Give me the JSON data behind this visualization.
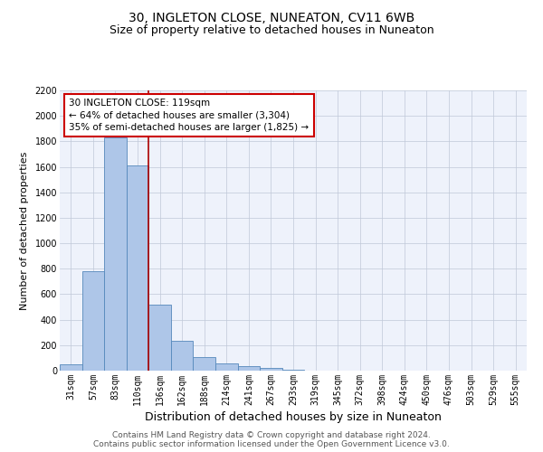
{
  "title1": "30, INGLETON CLOSE, NUNEATON, CV11 6WB",
  "title2": "Size of property relative to detached houses in Nuneaton",
  "xlabel": "Distribution of detached houses by size in Nuneaton",
  "ylabel": "Number of detached properties",
  "categories": [
    "31sqm",
    "57sqm",
    "83sqm",
    "110sqm",
    "136sqm",
    "162sqm",
    "188sqm",
    "214sqm",
    "241sqm",
    "267sqm",
    "293sqm",
    "319sqm",
    "345sqm",
    "372sqm",
    "398sqm",
    "424sqm",
    "450sqm",
    "476sqm",
    "503sqm",
    "529sqm",
    "555sqm"
  ],
  "values": [
    50,
    780,
    1830,
    1610,
    520,
    235,
    105,
    60,
    35,
    20,
    10,
    0,
    0,
    0,
    0,
    0,
    0,
    0,
    0,
    0,
    0
  ],
  "bar_color": "#aec6e8",
  "bar_edge_color": "#5588bb",
  "vline_color": "#aa0000",
  "vline_x": 3.5,
  "annotation_text": "30 INGLETON CLOSE: 119sqm\n← 64% of detached houses are smaller (3,304)\n35% of semi-detached houses are larger (1,825) →",
  "annotation_box_color": "#ffffff",
  "annotation_box_edge_color": "#cc0000",
  "ylim": [
    0,
    2200
  ],
  "yticks": [
    0,
    200,
    400,
    600,
    800,
    1000,
    1200,
    1400,
    1600,
    1800,
    2000,
    2200
  ],
  "background_color": "#eef2fb",
  "footer1": "Contains HM Land Registry data © Crown copyright and database right 2024.",
  "footer2": "Contains public sector information licensed under the Open Government Licence v3.0.",
  "title1_fontsize": 10,
  "title2_fontsize": 9,
  "xlabel_fontsize": 9,
  "ylabel_fontsize": 8,
  "tick_fontsize": 7,
  "footer_fontsize": 6.5
}
